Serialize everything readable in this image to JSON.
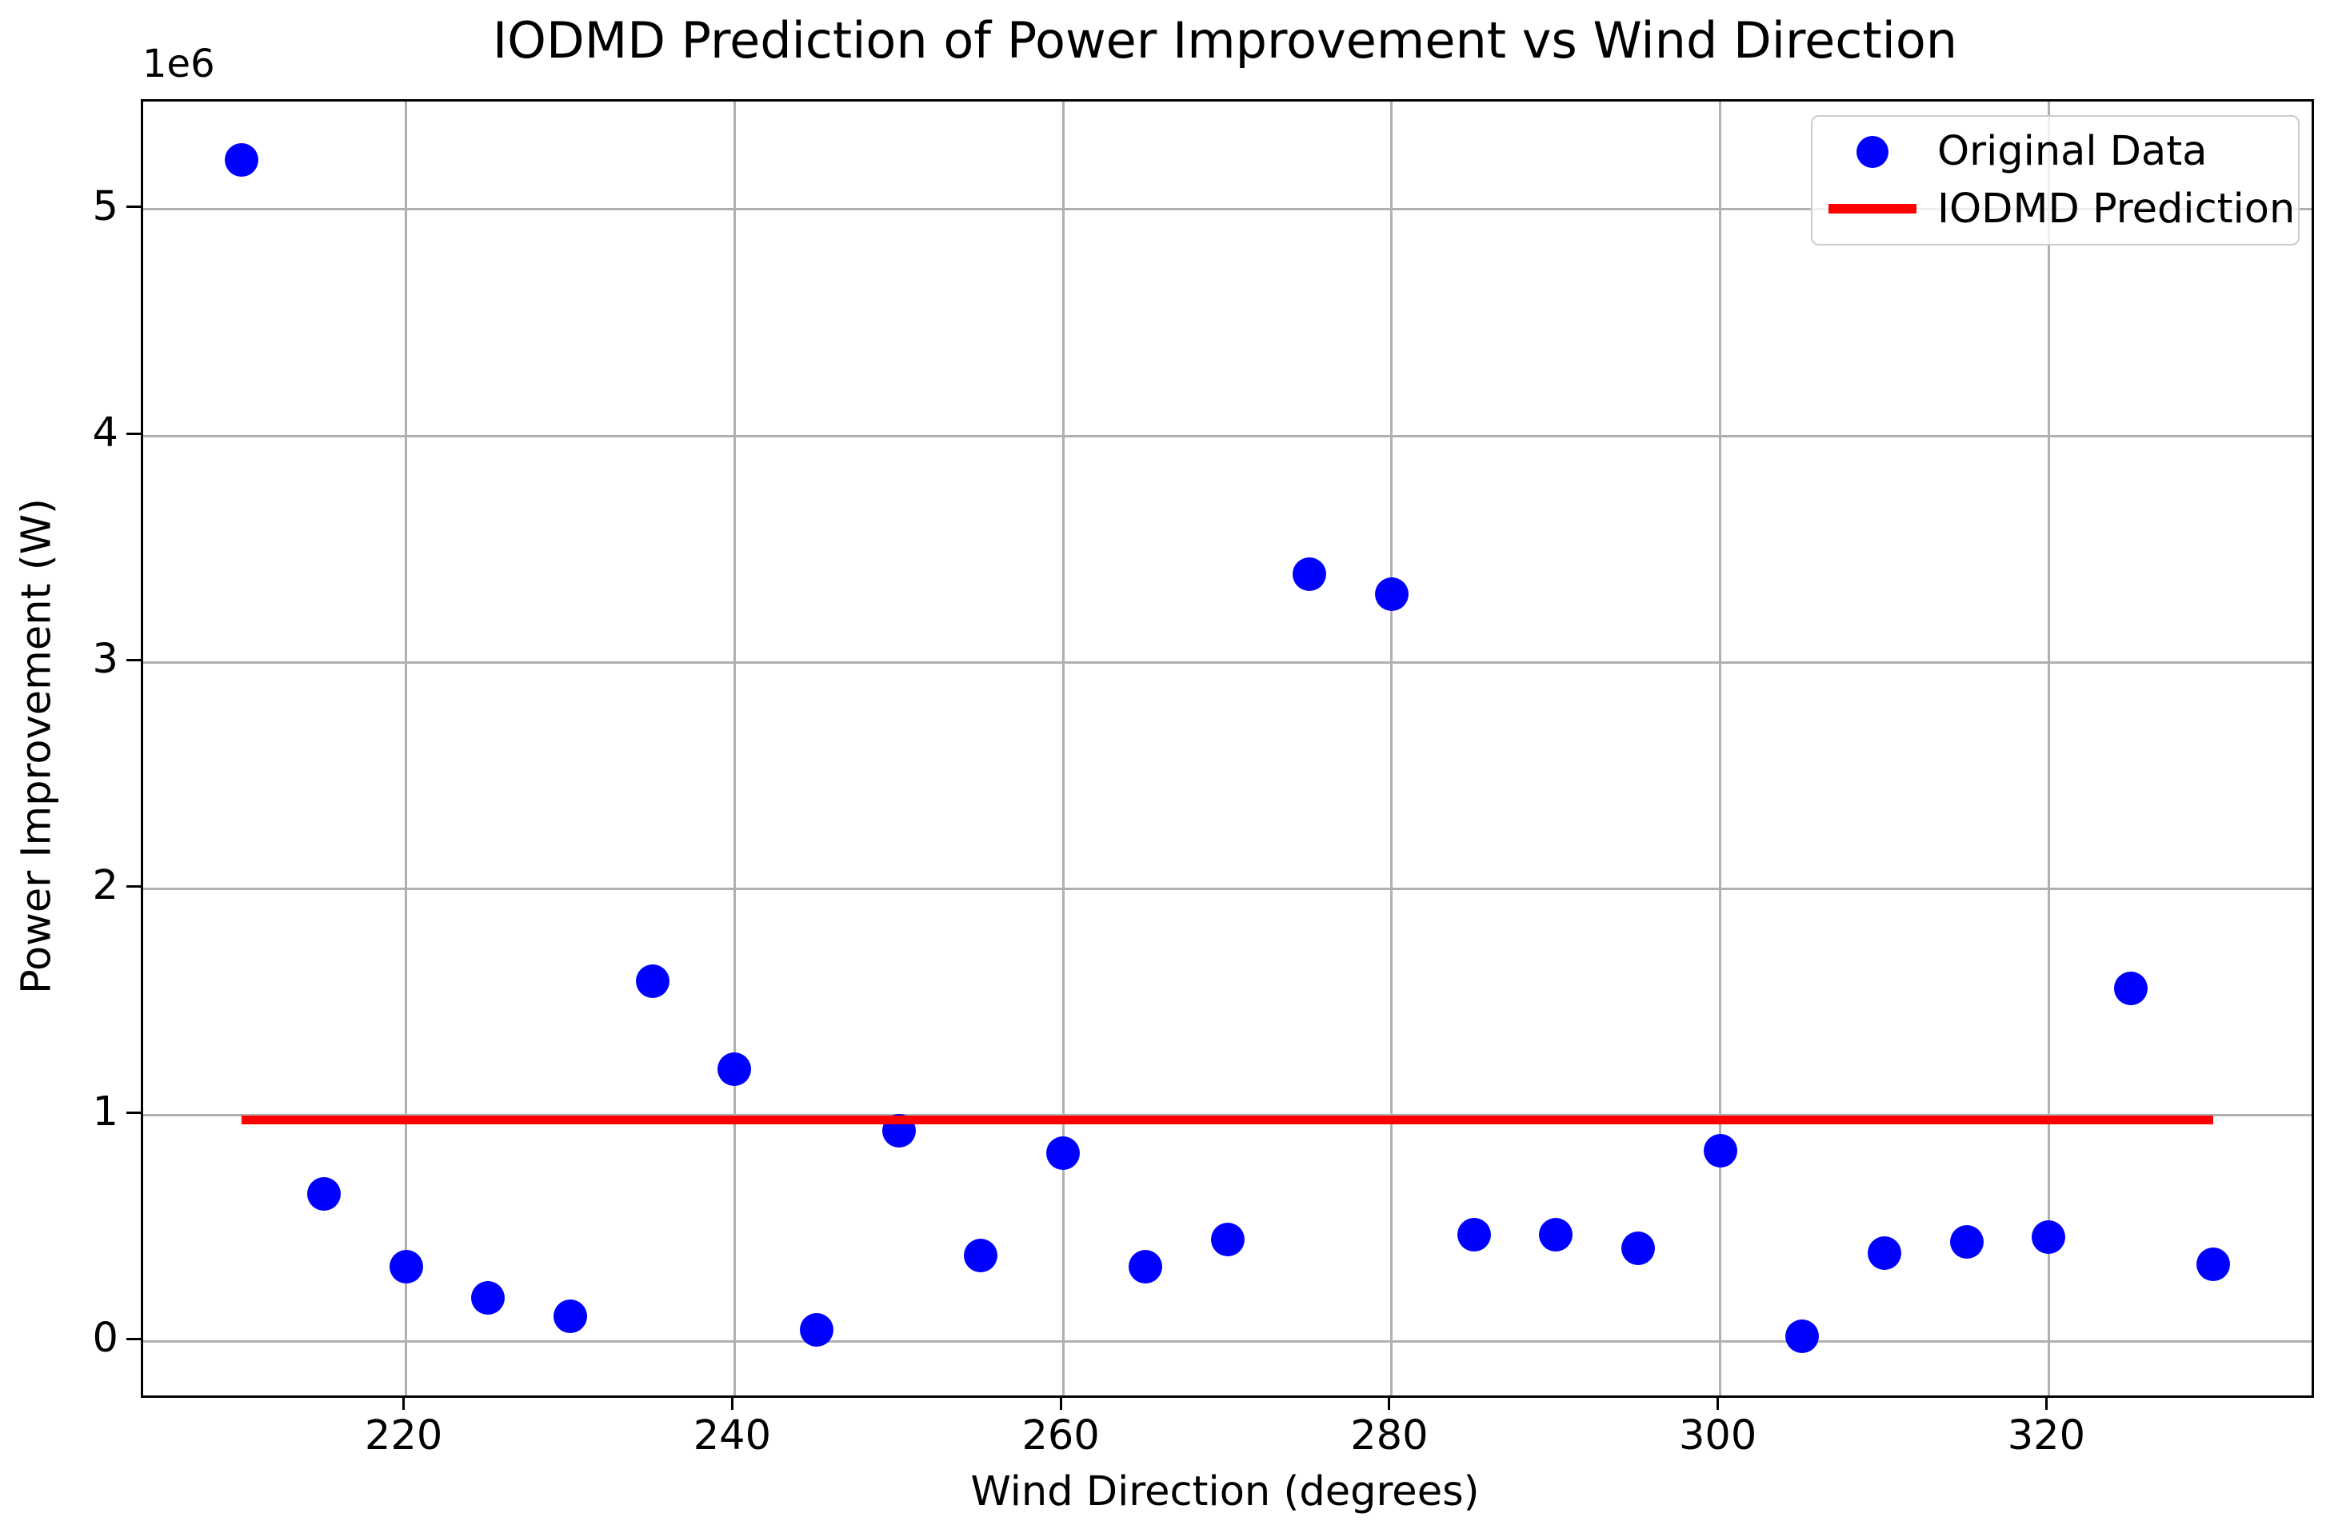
{
  "figure": {
    "title": "IODMD Prediction of Power Improvement vs Wind Direction",
    "xlabel": "Wind Direction (degrees)",
    "ylabel": "Power Improvement (W)",
    "offset_text": "1e6"
  },
  "legend": {
    "items": [
      {
        "label": "Original Data",
        "marker": "dot",
        "color": "#0000ff"
      },
      {
        "label": "IODMD Prediction",
        "marker": "line",
        "color": "#ff0000"
      }
    ]
  },
  "colors": {
    "scatter": "#0000ff",
    "prediction_line": "#ff0000",
    "grid": "#b0b0b0",
    "spine": "#000000",
    "text": "#000000",
    "legend_border": "#cccccc"
  },
  "chart_data": {
    "type": "scatter",
    "title": "IODMD Prediction of Power Improvement vs Wind Direction",
    "xlabel": "Wind Direction (degrees)",
    "ylabel": "Power Improvement (W)",
    "y_axis_offset_label": "1e6",
    "xlim": [
      204,
      336
    ],
    "ylim": [
      -240000,
      5477000
    ],
    "xticks": [
      220,
      240,
      260,
      280,
      300,
      320
    ],
    "yticks": [
      0,
      1000000,
      2000000,
      3000000,
      4000000,
      5000000
    ],
    "ytick_labels": [
      "0",
      "1",
      "2",
      "3",
      "4",
      "5"
    ],
    "grid": true,
    "legend_position": "upper right",
    "series": [
      {
        "name": "Original Data",
        "type": "scatter",
        "color": "#0000ff",
        "x": [
          210,
          215,
          220,
          225,
          230,
          235,
          240,
          245,
          250,
          255,
          260,
          265,
          270,
          275,
          280,
          285,
          290,
          295,
          300,
          305,
          310,
          315,
          320,
          325,
          330
        ],
        "y": [
          5220000,
          650000,
          330000,
          190000,
          110000,
          1590000,
          1200000,
          50000,
          930000,
          380000,
          830000,
          330000,
          450000,
          3390000,
          3300000,
          470000,
          470000,
          410000,
          840000,
          20000,
          390000,
          440000,
          460000,
          1560000,
          340000
        ]
      },
      {
        "name": "IODMD Prediction",
        "type": "line",
        "color": "#ff0000",
        "x": [
          210,
          330
        ],
        "y": [
          977000,
          977000
        ]
      }
    ]
  }
}
